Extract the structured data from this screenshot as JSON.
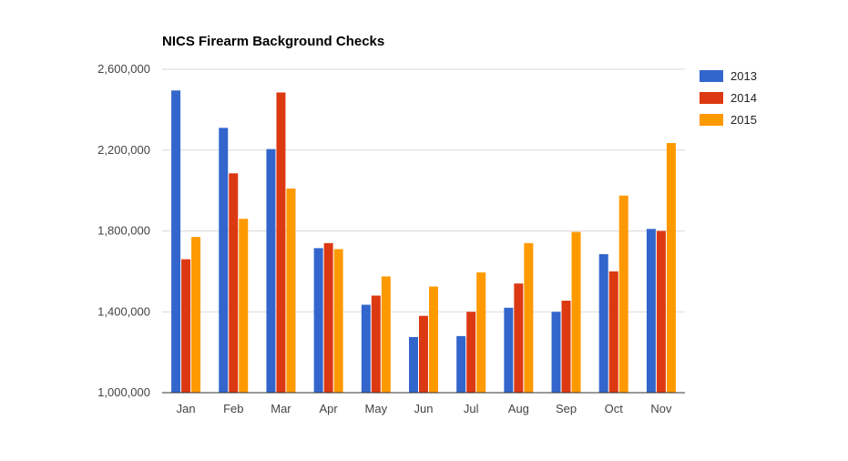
{
  "chart_data": {
    "type": "bar",
    "title": "NICS Firearm Background Checks",
    "xlabel": "",
    "ylabel": "",
    "categories": [
      "Jan",
      "Feb",
      "Mar",
      "Apr",
      "May",
      "Jun",
      "Jul",
      "Aug",
      "Sep",
      "Oct",
      "Nov"
    ],
    "series": [
      {
        "name": "2013",
        "color": "#3366cc",
        "values": [
          2495000,
          2310000,
          2205000,
          1715000,
          1435000,
          1275000,
          1280000,
          1420000,
          1400000,
          1685000,
          1810000
        ]
      },
      {
        "name": "2014",
        "color": "#dc3912",
        "values": [
          1660000,
          2085000,
          2485000,
          1740000,
          1480000,
          1380000,
          1400000,
          1540000,
          1455000,
          1600000,
          1800000
        ]
      },
      {
        "name": "2015",
        "color": "#ff9900",
        "values": [
          1770000,
          1860000,
          2010000,
          1710000,
          1575000,
          1525000,
          1595000,
          1740000,
          1795000,
          1975000,
          2235000
        ]
      }
    ],
    "y_ticks": [
      "1,000,000",
      "1,400,000",
      "1,800,000",
      "2,200,000",
      "2,600,000"
    ],
    "ylim": [
      1000000,
      2600000
    ],
    "grid": true,
    "legend_position": "right"
  }
}
